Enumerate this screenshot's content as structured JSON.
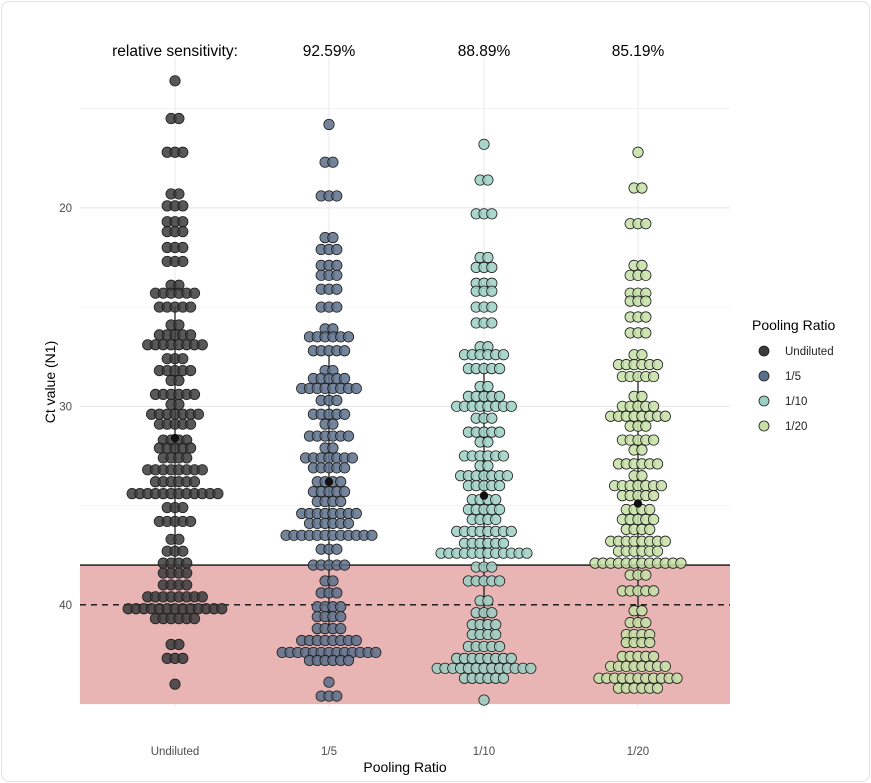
{
  "chart_data": {
    "type": "scatter",
    "subtype": "beeswarm",
    "xlabel": "Pooling Ratio",
    "ylabel": "Ct value (N1)",
    "categories": [
      "Undiluted",
      "1/5",
      "1/10",
      "1/20"
    ],
    "y_reversed": true,
    "ylim": [
      12.4,
      45.2
    ],
    "y_ticks": [
      20,
      30,
      40
    ],
    "grid": true,
    "legend": {
      "title": "Pooling Ratio",
      "position": "right",
      "entries": [
        "Undiluted",
        "1/5",
        "1/10",
        "1/20"
      ]
    },
    "annotations": {
      "label": "relative sensitivity:",
      "sensitivities": [
        "",
        "92.59%",
        "88.89%",
        "85.19%"
      ]
    },
    "reference_lines": {
      "solid": 38,
      "dashed": 40
    },
    "shaded_region": {
      "from": 38,
      "to": 45,
      "color": "#e8b4b4"
    },
    "series": [
      {
        "name": "Undiluted",
        "color": "#3b3b3b",
        "mean": 31.6,
        "sd_range": [
          25.0,
          37.8
        ],
        "rows": [
          [
            13.6,
            1
          ],
          [
            15.5,
            2
          ],
          [
            17.2,
            3
          ],
          [
            19.3,
            2
          ],
          [
            19.9,
            3
          ],
          [
            20.7,
            3
          ],
          [
            21.2,
            3
          ],
          [
            22.0,
            3
          ],
          [
            22.7,
            3
          ],
          [
            23.9,
            2
          ],
          [
            24.3,
            6
          ],
          [
            25.0,
            5
          ],
          [
            25.9,
            2
          ],
          [
            26.4,
            5
          ],
          [
            26.9,
            8
          ],
          [
            27.6,
            3
          ],
          [
            28.2,
            5
          ],
          [
            28.7,
            2
          ],
          [
            29.4,
            6
          ],
          [
            29.9,
            2
          ],
          [
            30.4,
            7
          ],
          [
            30.9,
            5
          ],
          [
            31.7,
            4
          ],
          [
            32.1,
            5
          ],
          [
            32.6,
            4
          ],
          [
            33.2,
            8
          ],
          [
            33.8,
            6
          ],
          [
            34.4,
            12
          ],
          [
            35.1,
            3
          ],
          [
            35.8,
            5
          ],
          [
            36.7,
            2
          ],
          [
            37.3,
            3
          ],
          [
            37.9,
            4
          ],
          [
            38.4,
            4
          ],
          [
            39.0,
            4
          ],
          [
            39.6,
            8
          ],
          [
            40.2,
            13
          ],
          [
            40.7,
            6
          ],
          [
            42.0,
            2
          ],
          [
            42.7,
            3
          ],
          [
            44.0,
            1
          ]
        ]
      },
      {
        "name": "1/5",
        "color": "#5b6f8a",
        "mean": 33.8,
        "sd_range": [
          27.4,
          41.3
        ],
        "rows": [
          [
            15.8,
            1
          ],
          [
            17.7,
            2
          ],
          [
            19.4,
            3
          ],
          [
            21.5,
            2
          ],
          [
            22.1,
            3
          ],
          [
            22.9,
            3
          ],
          [
            23.4,
            3
          ],
          [
            24.1,
            3
          ],
          [
            25.0,
            3
          ],
          [
            26.1,
            2
          ],
          [
            26.5,
            6
          ],
          [
            27.2,
            5
          ],
          [
            28.2,
            2
          ],
          [
            28.6,
            5
          ],
          [
            29.1,
            8
          ],
          [
            29.7,
            3
          ],
          [
            30.4,
            5
          ],
          [
            30.9,
            2
          ],
          [
            31.5,
            6
          ],
          [
            32.1,
            2
          ],
          [
            32.6,
            7
          ],
          [
            33.1,
            5
          ],
          [
            33.8,
            4
          ],
          [
            34.3,
            5
          ],
          [
            34.8,
            4
          ],
          [
            35.4,
            8
          ],
          [
            35.9,
            6
          ],
          [
            36.5,
            12
          ],
          [
            37.2,
            3
          ],
          [
            38.0,
            5
          ],
          [
            38.8,
            2
          ],
          [
            39.4,
            3
          ],
          [
            40.1,
            4
          ],
          [
            40.6,
            4
          ],
          [
            41.2,
            4
          ],
          [
            41.8,
            8
          ],
          [
            42.4,
            13
          ],
          [
            42.8,
            6
          ],
          [
            43.9,
            1
          ],
          [
            44.6,
            3
          ]
        ]
      },
      {
        "name": "1/10",
        "color": "#9ccfc3",
        "mean": 34.5,
        "sd_range": [
          27.8,
          41.2
        ],
        "rows": [
          [
            16.8,
            1
          ],
          [
            18.6,
            2
          ],
          [
            20.3,
            3
          ],
          [
            22.5,
            2
          ],
          [
            23.0,
            3
          ],
          [
            23.8,
            3
          ],
          [
            24.2,
            3
          ],
          [
            25.0,
            3
          ],
          [
            25.8,
            3
          ],
          [
            27.0,
            2
          ],
          [
            27.4,
            6
          ],
          [
            28.1,
            5
          ],
          [
            29.0,
            2
          ],
          [
            29.5,
            5
          ],
          [
            30.0,
            8
          ],
          [
            30.6,
            3
          ],
          [
            31.3,
            5
          ],
          [
            31.8,
            2
          ],
          [
            32.5,
            6
          ],
          [
            33.0,
            2
          ],
          [
            33.5,
            7
          ],
          [
            34.0,
            5
          ],
          [
            34.7,
            4
          ],
          [
            35.2,
            5
          ],
          [
            35.7,
            4
          ],
          [
            36.3,
            8
          ],
          [
            36.9,
            6
          ],
          [
            37.4,
            12
          ],
          [
            38.1,
            3
          ],
          [
            38.8,
            5
          ],
          [
            39.8,
            2
          ],
          [
            40.4,
            3
          ],
          [
            41.0,
            4
          ],
          [
            41.5,
            4
          ],
          [
            42.1,
            5
          ],
          [
            42.7,
            8
          ],
          [
            43.2,
            13
          ],
          [
            43.7,
            6
          ],
          [
            44.8,
            1
          ]
        ]
      },
      {
        "name": "1/20",
        "color": "#c6e0a6",
        "mean": 34.9,
        "sd_range": [
          28.3,
          40.8
        ],
        "rows": [
          [
            17.2,
            1
          ],
          [
            19.0,
            2
          ],
          [
            20.8,
            3
          ],
          [
            22.9,
            2
          ],
          [
            23.4,
            3
          ],
          [
            24.3,
            3
          ],
          [
            24.7,
            3
          ],
          [
            25.5,
            3
          ],
          [
            26.3,
            3
          ],
          [
            27.4,
            2
          ],
          [
            27.9,
            6
          ],
          [
            28.5,
            5
          ],
          [
            29.5,
            2
          ],
          [
            30.0,
            5
          ],
          [
            30.5,
            8
          ],
          [
            31.0,
            3
          ],
          [
            31.7,
            5
          ],
          [
            32.2,
            2
          ],
          [
            32.9,
            6
          ],
          [
            33.5,
            2
          ],
          [
            34.0,
            7
          ],
          [
            34.5,
            5
          ],
          [
            35.2,
            4
          ],
          [
            35.7,
            5
          ],
          [
            36.2,
            4
          ],
          [
            36.8,
            8
          ],
          [
            37.3,
            6
          ],
          [
            37.9,
            12
          ],
          [
            38.5,
            3
          ],
          [
            39.3,
            5
          ],
          [
            40.3,
            2
          ],
          [
            40.9,
            3
          ],
          [
            41.5,
            4
          ],
          [
            41.9,
            4
          ],
          [
            42.6,
            5
          ],
          [
            43.1,
            8
          ],
          [
            43.7,
            11
          ],
          [
            44.2,
            6
          ]
        ]
      }
    ]
  }
}
